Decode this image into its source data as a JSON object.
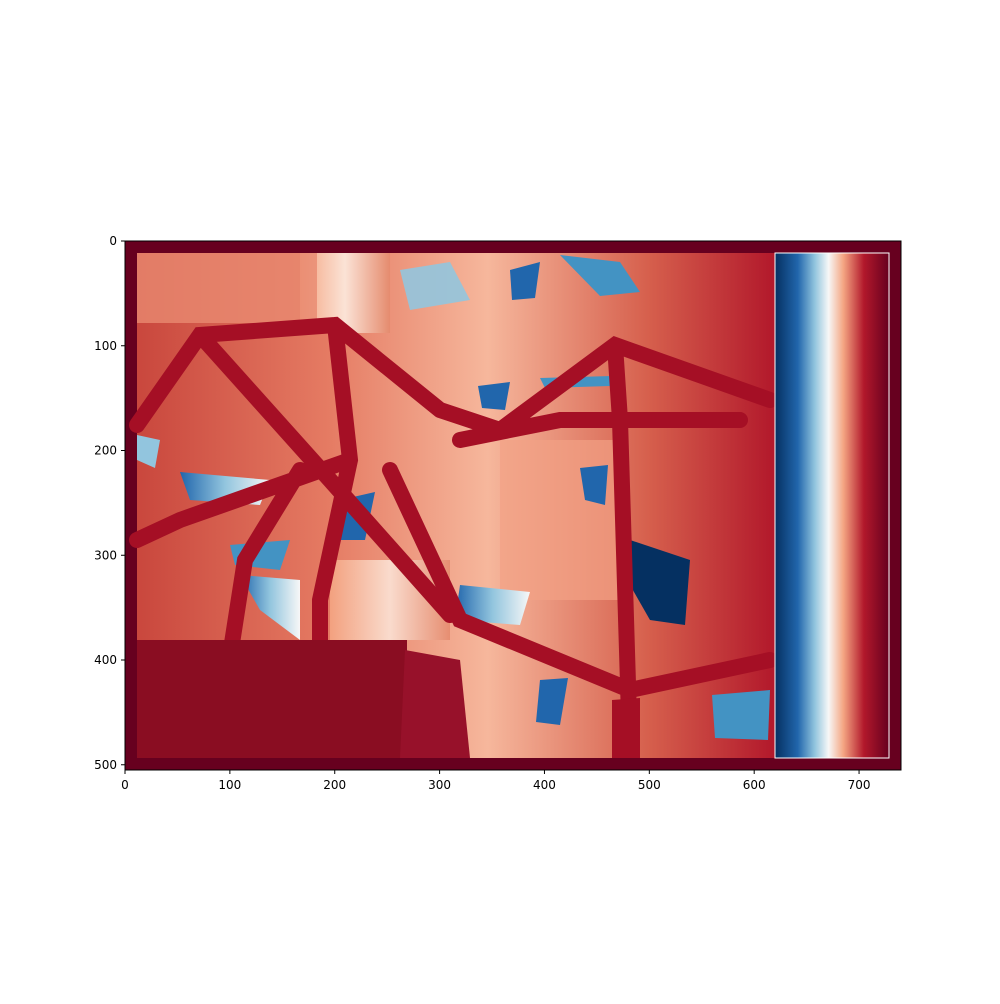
{
  "colormap": {
    "name": "RdBu",
    "stops": [
      "#053061",
      "#2166ac",
      "#4393c3",
      "#92c5de",
      "#d1e5f0",
      "#f7f7f7",
      "#fddbc7",
      "#f4a582",
      "#d6604d",
      "#b2182b",
      "#67001f"
    ]
  },
  "chart_data": {
    "type": "heatmap",
    "title": "",
    "xlabel": "",
    "ylabel": "",
    "xlim": [
      0,
      740
    ],
    "ylim": [
      505,
      0
    ],
    "x_ticks": [
      0,
      100,
      200,
      300,
      400,
      500,
      600,
      700
    ],
    "y_ticks": [
      0,
      100,
      200,
      300,
      400,
      500
    ],
    "x_tick_labels": [
      "0",
      "100",
      "200",
      "300",
      "400",
      "500",
      "600",
      "700"
    ],
    "y_tick_labels": [
      "0",
      "100",
      "200",
      "300",
      "400",
      "500"
    ],
    "grid": false,
    "legend": "none"
  }
}
